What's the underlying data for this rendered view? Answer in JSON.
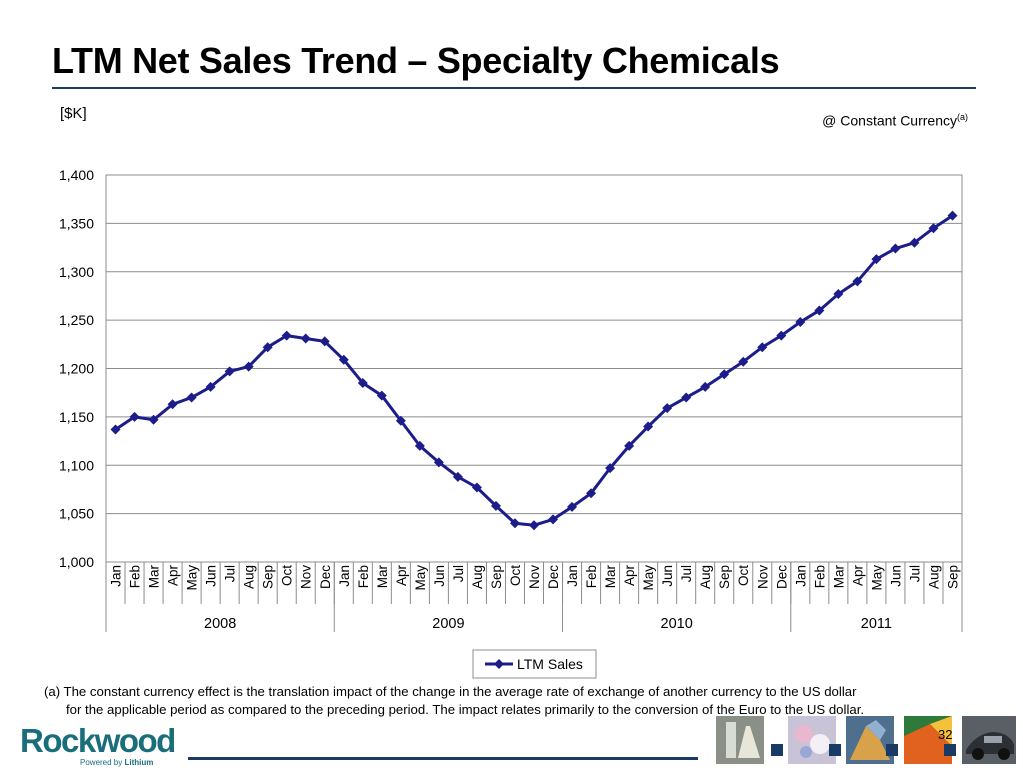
{
  "header": {
    "title": "LTM Net Sales Trend – Specialty Chemicals",
    "unit_label": "[$K]",
    "currency_note": "@ Constant Currency",
    "currency_note_sup": "(a)"
  },
  "chart_data": {
    "type": "line",
    "categories": [
      "Jan",
      "Feb",
      "Mar",
      "Apr",
      "May",
      "Jun",
      "Jul",
      "Aug",
      "Sep",
      "Oct",
      "Nov",
      "Dec",
      "Jan",
      "Feb",
      "Mar",
      "Apr",
      "May",
      "Jun",
      "Jul",
      "Aug",
      "Sep",
      "Oct",
      "Nov",
      "Dec",
      "Jan",
      "Feb",
      "Mar",
      "Apr",
      "May",
      "Jun",
      "Jul",
      "Aug",
      "Sep",
      "Oct",
      "Nov",
      "Dec",
      "Jan",
      "Feb",
      "Mar",
      "Apr",
      "May",
      "Jun",
      "Jul",
      "Aug",
      "Sep"
    ],
    "years": [
      {
        "label": "2008",
        "months": 12
      },
      {
        "label": "2009",
        "months": 12
      },
      {
        "label": "2010",
        "months": 12
      },
      {
        "label": "2011",
        "months": 9
      }
    ],
    "series": [
      {
        "name": "LTM Sales",
        "color": "#1c1c8a",
        "values": [
          1137,
          1150,
          1147,
          1163,
          1170,
          1181,
          1197,
          1202,
          1222,
          1234,
          1231,
          1228,
          1209,
          1185,
          1172,
          1146,
          1120,
          1103,
          1088,
          1077,
          1058,
          1040,
          1038,
          1044,
          1057,
          1071,
          1097,
          1120,
          1140,
          1159,
          1170,
          1181,
          1194,
          1207,
          1222,
          1234,
          1248,
          1260,
          1277,
          1290,
          1313,
          1324,
          1330,
          1345,
          1358
        ]
      }
    ],
    "yticks": [
      "1,000",
      "1,050",
      "1,100",
      "1,150",
      "1,200",
      "1,250",
      "1,300",
      "1,350",
      "1,400"
    ],
    "ylim": [
      1000,
      1400
    ],
    "grid": true,
    "legend_position": "bottom-center"
  },
  "footnote": {
    "line1": "(a) The constant currency effect is the translation impact of the change in the average rate of exchange of another currency to the  US dollar",
    "line2": "for the applicable period as compared to the preceding period.  The impact relates primarily to the conversion of the Euro to the US dollar."
  },
  "footer": {
    "logo_word": "Rockwood",
    "logo_sub_prefix": "Powered by ",
    "logo_sub_brand": "Lithium",
    "page_number": "32"
  },
  "colors": {
    "accent": "#1a3a66",
    "logo": "#1a6e7a",
    "line": "#1c1c8a"
  }
}
